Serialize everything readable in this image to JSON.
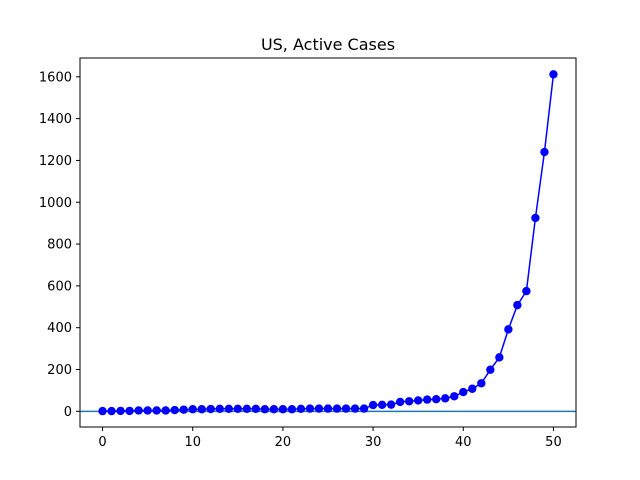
{
  "chart_data": {
    "type": "line",
    "title": "US, Active Cases",
    "xlabel": "",
    "ylabel": "",
    "xlim": [
      -2.5,
      52.5
    ],
    "ylim": [
      -75,
      1690
    ],
    "xticks": [
      0,
      10,
      20,
      30,
      40,
      50
    ],
    "yticks": [
      0,
      200,
      400,
      600,
      800,
      1000,
      1200,
      1400,
      1600
    ],
    "grid": false,
    "legend": "none",
    "series": [
      {
        "name": "US active cases",
        "color": "#0000ff",
        "marker": "circle",
        "x": [
          0,
          1,
          2,
          3,
          4,
          5,
          6,
          7,
          8,
          9,
          10,
          11,
          12,
          13,
          14,
          15,
          16,
          17,
          18,
          19,
          20,
          21,
          22,
          23,
          24,
          25,
          26,
          27,
          28,
          29,
          30,
          31,
          32,
          33,
          34,
          35,
          36,
          37,
          38,
          39,
          40,
          41,
          42,
          43,
          44,
          45,
          46,
          47,
          48,
          49,
          50
        ],
        "values": [
          1,
          1,
          2,
          2,
          4,
          4,
          4,
          4,
          6,
          8,
          10,
          10,
          11,
          12,
          12,
          12,
          12,
          12,
          10,
          10,
          10,
          10,
          12,
          13,
          13,
          13,
          13,
          13,
          13,
          13,
          30,
          31,
          32,
          45,
          48,
          52,
          56,
          58,
          62,
          72,
          92,
          108,
          134,
          199,
          258,
          392,
          508,
          575,
          925,
          1240,
          1612
        ]
      }
    ],
    "reference_line": {
      "orientation": "horizontal",
      "y": 0,
      "color": "#1f77b4"
    }
  }
}
